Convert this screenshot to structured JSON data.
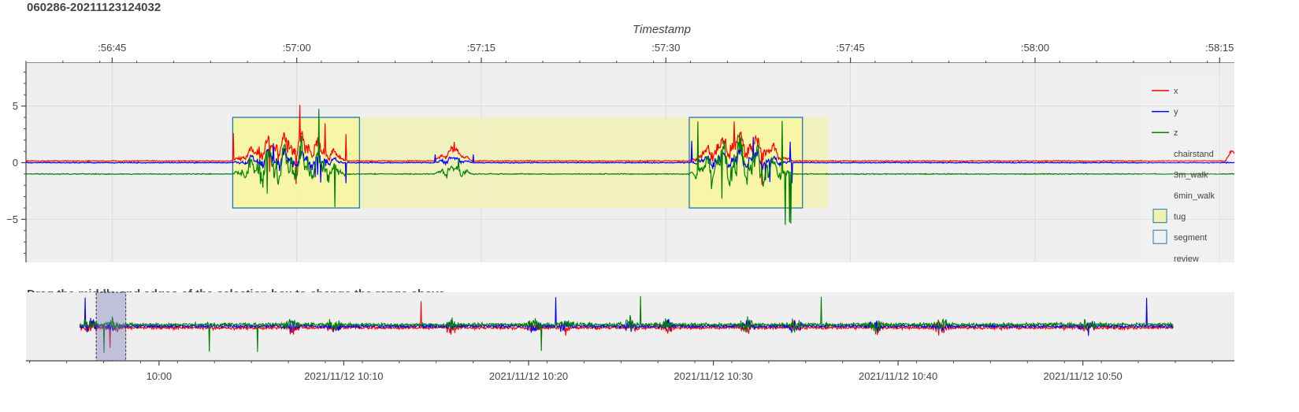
{
  "title": "060286-20211123124032",
  "range_hint": "Drag the middle and edges of the selection box to change the range above",
  "colors": {
    "x": "#ff0000",
    "y": "#0000ff",
    "z": "#008000",
    "tug": "#f2f2b0",
    "segment": "#1f77b4",
    "bg": "#efefef"
  },
  "chart_data": [
    {
      "type": "line",
      "name": "detail",
      "xlabel": "Timestamp",
      "x_unit": "seconds past 10:56:00",
      "xlim": [
        38.0,
        136.2
      ],
      "ylim": [
        -8.8,
        8.8
      ],
      "x_ticks": [
        {
          "value": 45,
          "label": ":56:45"
        },
        {
          "value": 60,
          "label": ":57:00"
        },
        {
          "value": 75,
          "label": ":57:15"
        },
        {
          "value": 90,
          "label": ":57:30"
        },
        {
          "value": 105,
          "label": ":57:45"
        },
        {
          "value": 120,
          "label": ":58:00"
        },
        {
          "value": 135,
          "label": ":58:15"
        }
      ],
      "y_ticks": [
        {
          "value": 5,
          "label": "5"
        },
        {
          "value": 0,
          "label": "0"
        },
        {
          "value": -5,
          "label": "−5"
        }
      ],
      "legend": {
        "position": "right",
        "entries": [
          {
            "label": "x",
            "kind": "line",
            "color": "#ff0000"
          },
          {
            "label": "y",
            "kind": "line",
            "color": "#0000ff"
          },
          {
            "label": "z",
            "kind": "line",
            "color": "#008000"
          },
          {
            "label": "chairstand",
            "kind": "none"
          },
          {
            "label": "3m_walk",
            "kind": "none"
          },
          {
            "label": "6min_walk",
            "kind": "none"
          },
          {
            "label": "tug",
            "kind": "box-fill"
          },
          {
            "label": "segment",
            "kind": "box-outline"
          },
          {
            "label": "review",
            "kind": "none"
          }
        ]
      },
      "tug_regions": [
        [
          54.8,
          103.2
        ]
      ],
      "segments": [
        [
          54.8,
          65.1
        ],
        [
          91.9,
          101.1
        ]
      ],
      "region_ylim": [
        -4.0,
        4.0
      ],
      "series": [
        {
          "name": "x",
          "color": "#ff0000",
          "baseline": 0.15,
          "spans": [
            [
              54.8,
              65.1,
              1.4,
              1.7
            ],
            [
              71.2,
              74.5,
              0.8,
              0.6
            ],
            [
              91.9,
              101.1,
              1.4,
              1.7
            ],
            [
              135.5,
              137.0,
              0.9,
              0.4
            ]
          ]
        },
        {
          "name": "y",
          "color": "#0000ff",
          "baseline": 0.0,
          "spans": [
            [
              54.8,
              65.1,
              0.3,
              1.3
            ],
            [
              71.2,
              74.5,
              0.3,
              0.5
            ],
            [
              91.9,
              101.1,
              0.3,
              1.3
            ]
          ]
        },
        {
          "name": "z",
          "color": "#008000",
          "baseline": -1.0,
          "spans": [
            [
              54.8,
              65.1,
              0.8,
              2.8
            ],
            [
              71.2,
              74.5,
              0.4,
              0.8
            ],
            [
              91.9,
              101.1,
              0.9,
              3.2
            ]
          ]
        }
      ]
    },
    {
      "type": "line",
      "name": "range-selector",
      "x_unit": "minutes past 09:50",
      "xlim": [
        2.8,
        68.2
      ],
      "x_ticks": [
        {
          "value": 10,
          "label": "10:00"
        },
        {
          "value": 20,
          "label": "2021/11/12 10:10"
        },
        {
          "value": 30,
          "label": "2021/11/12 10:20"
        },
        {
          "value": 40,
          "label": "2021/11/12 10:30"
        },
        {
          "value": 50,
          "label": "2021/11/12 10:40"
        },
        {
          "value": 60,
          "label": "2021/11/12 10:50"
        }
      ],
      "data_range": [
        5.7,
        64.9
      ],
      "selection": [
        6.6,
        8.2
      ],
      "bursts": [
        6.3,
        7.5,
        17.2,
        19.5,
        25.8,
        30.3,
        32.0,
        35.5,
        37.5,
        41.8,
        44.4,
        48.8,
        52.3,
        60.3
      ]
    }
  ]
}
